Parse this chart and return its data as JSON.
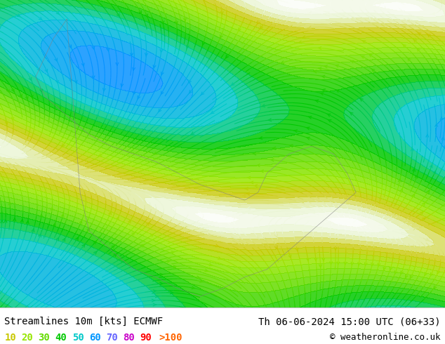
{
  "title_left": "Streamlines 10m [kts] ECMWF",
  "title_right": "Th 06-06-2024 15:00 UTC (06+33)",
  "copyright": "© weatheronline.co.uk",
  "legend_values": [
    10,
    20,
    30,
    40,
    50,
    60,
    70,
    80,
    90
  ],
  "legend_gt100": ">100",
  "legend_colors": [
    "#c8c800",
    "#96e600",
    "#64dc00",
    "#00c800",
    "#00c8c8",
    "#0096ff",
    "#6464ff",
    "#c800c8",
    "#ff0000",
    "#ff6400"
  ],
  "bg_color": "#ffffff",
  "map_bg": "#f5f5f5",
  "bottom_bar_color": "#ffffff",
  "text_color": "#000000",
  "title_fontsize": 10,
  "legend_fontsize": 10,
  "copyright_fontsize": 9,
  "fig_width": 6.34,
  "fig_height": 4.9,
  "dpi": 100
}
